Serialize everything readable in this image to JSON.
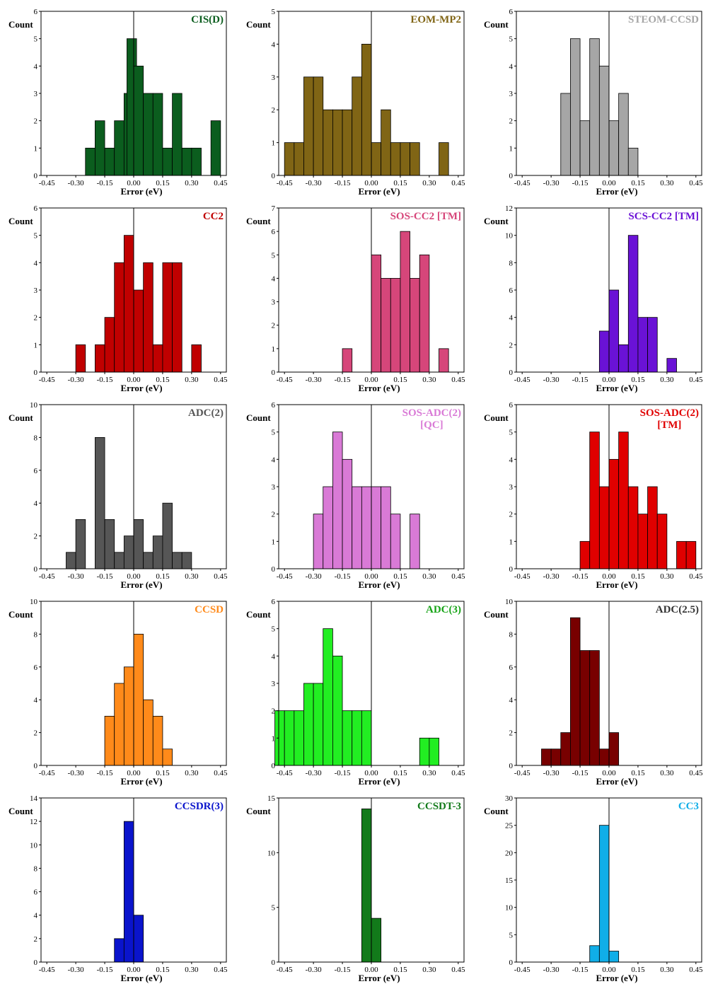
{
  "colors": {
    "CIS(D)": "#0b5d1e",
    "EOM-MP2": "#806515",
    "STEOM-CCSD": "#a6a6a6",
    "CC2": "#c00000",
    "SOS-CC2 [TM]": "#d6467a",
    "SCS-CC2 [TM]": "#6a12d6",
    "ADC(2)": "#565656",
    "SOS-ADC(2) [QC]": "#d97ad6",
    "SOS-ADC(2) [TM]": "#e00000",
    "CCSD": "#ff8a1a",
    "ADC(3)": "#22ee22",
    "ADC(2.5)": "#780000",
    "CCSDR(3)": "#0a14cc",
    "CCSDT-3": "#127a1a",
    "CC3": "#10aee8"
  },
  "chart_data": [
    {
      "type": "bar",
      "title": "CIS(D)",
      "title_color": "#0b5d1e",
      "ylabel": "Count",
      "xlabel": "Error (eV)",
      "ylim": [
        0,
        6
      ],
      "yticks": [
        0,
        1,
        2,
        3,
        4,
        5,
        6
      ],
      "xticks": [
        "-0.45",
        "-0.30",
        "-0.15",
        "0.00",
        "0.15",
        "0.30",
        "0.45"
      ],
      "bin_width": 0.05,
      "bins": [
        [
          -0.225,
          1
        ],
        [
          -0.175,
          2
        ],
        [
          -0.125,
          1
        ],
        [
          -0.075,
          2
        ],
        [
          -0.025,
          3
        ],
        [
          -0.01,
          5
        ],
        [
          0.025,
          4
        ],
        [
          0.075,
          3
        ],
        [
          0.125,
          3
        ],
        [
          0.175,
          1
        ],
        [
          0.225,
          3
        ],
        [
          0.275,
          1
        ],
        [
          0.325,
          1
        ],
        [
          0.425,
          2
        ]
      ]
    },
    {
      "type": "bar",
      "title": "EOM-MP2",
      "title_color": "#806515",
      "ylabel": "Count",
      "xlabel": "Error (eV)",
      "ylim": [
        0,
        5
      ],
      "yticks": [
        0,
        1,
        2,
        3,
        4,
        5
      ],
      "xticks": [
        "-0.45",
        "-0.30",
        "-0.15",
        "0.00",
        "0.15",
        "0.30",
        "0.45"
      ],
      "bin_width": 0.05,
      "bins": [
        [
          -0.425,
          1
        ],
        [
          -0.375,
          1
        ],
        [
          -0.325,
          3
        ],
        [
          -0.275,
          3
        ],
        [
          -0.225,
          2
        ],
        [
          -0.175,
          2
        ],
        [
          -0.125,
          2
        ],
        [
          -0.075,
          3
        ],
        [
          -0.025,
          4
        ],
        [
          0.025,
          1
        ],
        [
          0.075,
          2
        ],
        [
          0.125,
          1
        ],
        [
          0.175,
          1
        ],
        [
          0.225,
          1
        ],
        [
          0.375,
          1
        ]
      ]
    },
    {
      "type": "bar",
      "title": "STEOM-CCSD",
      "title_color": "#a6a6a6",
      "ylabel": "Count",
      "xlabel": "Error (eV)",
      "ylim": [
        0,
        6
      ],
      "yticks": [
        0,
        1,
        2,
        3,
        4,
        5,
        6
      ],
      "xticks": [
        "-0.45",
        "-0.30",
        "-0.15",
        "0.00",
        "0.15",
        "0.30",
        "0.45"
      ],
      "bin_width": 0.05,
      "bins": [
        [
          -0.225,
          3
        ],
        [
          -0.175,
          5
        ],
        [
          -0.125,
          2
        ],
        [
          -0.075,
          5
        ],
        [
          -0.025,
          4
        ],
        [
          0.025,
          2
        ],
        [
          0.075,
          3
        ],
        [
          0.125,
          1
        ]
      ]
    },
    {
      "type": "bar",
      "title": "CC2",
      "title_color": "#c00000",
      "ylabel": "Count",
      "xlabel": "Error (eV)",
      "ylim": [
        0,
        6
      ],
      "yticks": [
        0,
        1,
        2,
        3,
        4,
        5,
        6
      ],
      "xticks": [
        "-0.45",
        "-0.30",
        "-0.15",
        "0.00",
        "0.15",
        "0.30",
        "0.45"
      ],
      "bin_width": 0.05,
      "bins": [
        [
          -0.275,
          1
        ],
        [
          -0.175,
          1
        ],
        [
          -0.125,
          2
        ],
        [
          -0.075,
          4
        ],
        [
          -0.025,
          5
        ],
        [
          0.025,
          3
        ],
        [
          0.075,
          4
        ],
        [
          0.125,
          1
        ],
        [
          0.175,
          4
        ],
        [
          0.225,
          4
        ],
        [
          0.325,
          1
        ]
      ]
    },
    {
      "type": "bar",
      "title": "SOS-CC2 [TM]",
      "title_color": "#d6467a",
      "ylabel": "Count",
      "xlabel": "Error (eV)",
      "ylim": [
        0,
        7
      ],
      "yticks": [
        0,
        1,
        2,
        3,
        4,
        5,
        6,
        7
      ],
      "xticks": [
        "-0.45",
        "-0.30",
        "-0.15",
        "0.00",
        "0.15",
        "0.30",
        "0.45"
      ],
      "bin_width": 0.05,
      "bins": [
        [
          -0.125,
          1
        ],
        [
          0.025,
          5
        ],
        [
          0.075,
          4
        ],
        [
          0.125,
          4
        ],
        [
          0.175,
          6
        ],
        [
          0.225,
          4
        ],
        [
          0.275,
          5
        ],
        [
          0.375,
          1
        ]
      ]
    },
    {
      "type": "bar",
      "title": "SCS-CC2 [TM]",
      "title_color": "#6a12d6",
      "ylabel": "Count",
      "xlabel": "Error (eV)",
      "ylim": [
        0,
        12
      ],
      "yticks": [
        0,
        2,
        4,
        6,
        8,
        10,
        12
      ],
      "xticks": [
        "-0.45",
        "-0.30",
        "-0.15",
        "0.00",
        "0.15",
        "0.30",
        "0.45"
      ],
      "bin_width": 0.05,
      "bins": [
        [
          -0.025,
          3
        ],
        [
          0.025,
          6
        ],
        [
          0.075,
          2
        ],
        [
          0.125,
          10
        ],
        [
          0.175,
          4
        ],
        [
          0.225,
          4
        ],
        [
          0.325,
          1
        ]
      ]
    },
    {
      "type": "bar",
      "title": "ADC(2)",
      "title_color": "#565656",
      "ylabel": "Count",
      "xlabel": "Error (eV)",
      "ylim": [
        0,
        10
      ],
      "yticks": [
        0,
        2,
        4,
        6,
        8,
        10
      ],
      "xticks": [
        "-0.45",
        "-0.30",
        "-0.15",
        "0.00",
        "0.15",
        "0.30",
        "0.45"
      ],
      "bin_width": 0.05,
      "bins": [
        [
          -0.325,
          1
        ],
        [
          -0.275,
          3
        ],
        [
          -0.175,
          8
        ],
        [
          -0.125,
          3
        ],
        [
          -0.075,
          1
        ],
        [
          -0.025,
          2
        ],
        [
          0.025,
          3
        ],
        [
          0.075,
          1
        ],
        [
          0.125,
          2
        ],
        [
          0.175,
          4
        ],
        [
          0.225,
          1
        ],
        [
          0.275,
          1
        ]
      ]
    },
    {
      "type": "bar",
      "title": "SOS-ADC(2)\n[QC]",
      "title_color": "#d97ad6",
      "ylabel": "Count",
      "xlabel": "Error (eV)",
      "ylim": [
        0,
        6
      ],
      "yticks": [
        0,
        1,
        2,
        3,
        4,
        5,
        6
      ],
      "xticks": [
        "-0.45",
        "-0.30",
        "-0.15",
        "0.00",
        "0.15",
        "0.30",
        "0.45"
      ],
      "bin_width": 0.05,
      "bins": [
        [
          -0.275,
          2
        ],
        [
          -0.225,
          3
        ],
        [
          -0.175,
          5
        ],
        [
          -0.125,
          4
        ],
        [
          -0.075,
          3
        ],
        [
          -0.025,
          3
        ],
        [
          0.025,
          3
        ],
        [
          0.075,
          3
        ],
        [
          0.125,
          2
        ],
        [
          0.225,
          2
        ]
      ]
    },
    {
      "type": "bar",
      "title": "SOS-ADC(2)\n[TM]",
      "title_color": "#e00000",
      "ylabel": "Count",
      "xlabel": "Error (eV)",
      "ylim": [
        0,
        6
      ],
      "yticks": [
        0,
        1,
        2,
        3,
        4,
        5,
        6
      ],
      "xticks": [
        "-0.45",
        "-0.30",
        "-0.15",
        "0.00",
        "0.15",
        "0.30",
        "0.45"
      ],
      "bin_width": 0.05,
      "bins": [
        [
          -0.125,
          1
        ],
        [
          -0.075,
          5
        ],
        [
          -0.025,
          3
        ],
        [
          0.025,
          4
        ],
        [
          0.075,
          5
        ],
        [
          0.125,
          3
        ],
        [
          0.175,
          2
        ],
        [
          0.225,
          3
        ],
        [
          0.275,
          2
        ],
        [
          0.325,
          0
        ],
        [
          0.375,
          1
        ],
        [
          0.425,
          1
        ]
      ]
    },
    {
      "type": "bar",
      "title": "CCSD",
      "title_color": "#ff8a1a",
      "ylabel": "Count",
      "xlabel": "Error (eV)",
      "ylim": [
        0,
        10
      ],
      "yticks": [
        0,
        2,
        4,
        6,
        8,
        10
      ],
      "xticks": [
        "-0.45",
        "-0.30",
        "-0.15",
        "0.00",
        "0.15",
        "0.30",
        "0.45"
      ],
      "bin_width": 0.05,
      "bins": [
        [
          -0.125,
          3
        ],
        [
          -0.075,
          5
        ],
        [
          -0.025,
          6
        ],
        [
          0.025,
          8
        ],
        [
          0.075,
          4
        ],
        [
          0.125,
          3
        ],
        [
          0.175,
          1
        ]
      ]
    },
    {
      "type": "bar",
      "title": "ADC(3)",
      "title_color": "#17a417",
      "fill_color": "#22ee22",
      "ylabel": "Count",
      "xlabel": "Error (eV)",
      "ylim": [
        0,
        6
      ],
      "yticks": [
        0,
        1,
        2,
        3,
        4,
        5,
        6
      ],
      "xticks": [
        "-0.45",
        "-0.30",
        "-0.15",
        "0.00",
        "0.15",
        "0.30",
        "0.45"
      ],
      "bin_width": 0.05,
      "bins": [
        [
          -0.475,
          2
        ],
        [
          -0.425,
          2
        ],
        [
          -0.375,
          2
        ],
        [
          -0.325,
          3
        ],
        [
          -0.275,
          3
        ],
        [
          -0.225,
          5
        ],
        [
          -0.175,
          4
        ],
        [
          -0.125,
          2
        ],
        [
          -0.075,
          2
        ],
        [
          -0.025,
          2
        ],
        [
          0.275,
          1
        ],
        [
          0.325,
          1
        ]
      ]
    },
    {
      "type": "bar",
      "title": "ADC(2.5)",
      "title_color": "#333333",
      "fill_color": "#780000",
      "ylabel": "Count",
      "xlabel": "Error (eV)",
      "ylim": [
        0,
        10
      ],
      "yticks": [
        0,
        2,
        4,
        6,
        8,
        10
      ],
      "xticks": [
        "-0.45",
        "-0.30",
        "-0.15",
        "0.00",
        "0.15",
        "0.30",
        "0.45"
      ],
      "bin_width": 0.05,
      "bins": [
        [
          -0.325,
          1
        ],
        [
          -0.275,
          1
        ],
        [
          -0.225,
          2
        ],
        [
          -0.175,
          9
        ],
        [
          -0.125,
          7
        ],
        [
          -0.075,
          7
        ],
        [
          -0.025,
          1
        ],
        [
          0.025,
          2
        ]
      ]
    },
    {
      "type": "bar",
      "title": "CCSDR(3)",
      "title_color": "#0a14cc",
      "ylabel": "Count",
      "xlabel": "Error (eV)",
      "ylim": [
        0,
        14
      ],
      "yticks": [
        0,
        2,
        4,
        6,
        8,
        10,
        12,
        14
      ],
      "xticks": [
        "-0.45",
        "-0.30",
        "-0.15",
        "0.00",
        "0.15",
        "0.30",
        "0.45"
      ],
      "bin_width": 0.05,
      "bins": [
        [
          -0.075,
          2
        ],
        [
          -0.025,
          12
        ],
        [
          0.025,
          4
        ]
      ]
    },
    {
      "type": "bar",
      "title": "CCSDT-3",
      "title_color": "#127a1a",
      "ylabel": "Count",
      "xlabel": "Error (eV)",
      "ylim": [
        0,
        15
      ],
      "yticks": [
        0,
        5,
        10,
        15
      ],
      "xticks": [
        "-0.45",
        "-0.30",
        "-0.15",
        "0.00",
        "0.15",
        "0.30",
        "0.45"
      ],
      "bin_width": 0.05,
      "bins": [
        [
          -0.025,
          14
        ],
        [
          0.025,
          4
        ]
      ]
    },
    {
      "type": "bar",
      "title": "CC3",
      "title_color": "#10aee8",
      "ylabel": "Count",
      "xlabel": "Error (eV)",
      "ylim": [
        0,
        30
      ],
      "yticks": [
        0,
        5,
        10,
        15,
        20,
        25,
        30
      ],
      "xticks": [
        "-0.45",
        "-0.30",
        "-0.15",
        "0.00",
        "0.15",
        "0.30",
        "0.45"
      ],
      "bin_width": 0.05,
      "bins": [
        [
          -0.075,
          3
        ],
        [
          -0.025,
          25
        ],
        [
          0.025,
          2
        ]
      ]
    }
  ]
}
